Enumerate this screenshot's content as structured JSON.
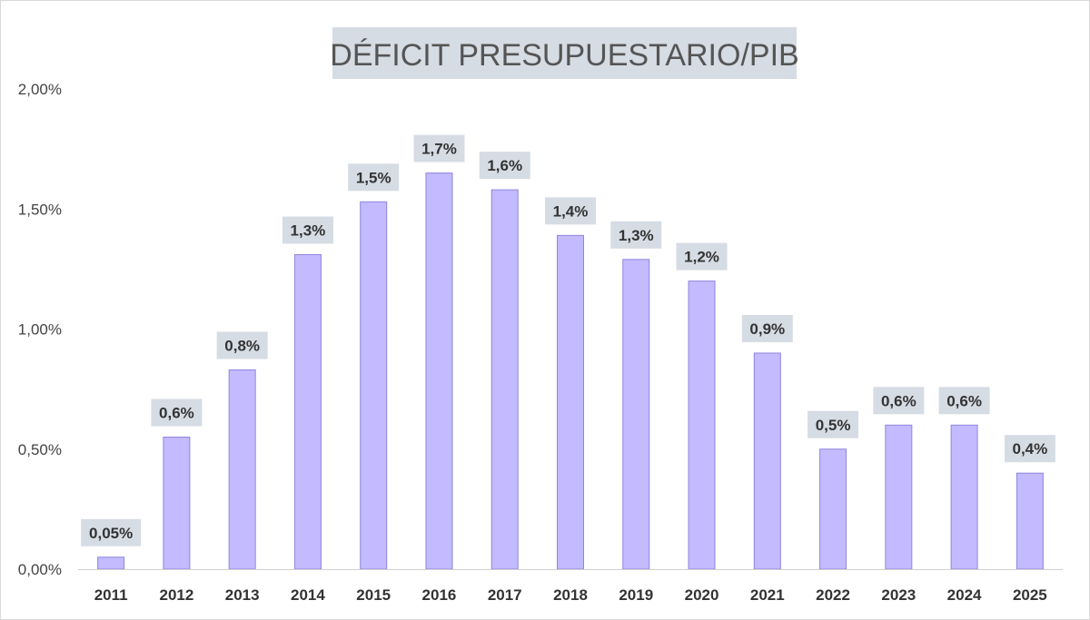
{
  "chart_data": {
    "type": "bar",
    "title": "DÉFICIT PRESUPUESTARIO/PIB",
    "xlabel": "",
    "ylabel": "",
    "ylim": [
      0,
      2.0
    ],
    "yticks": [
      0,
      0.5,
      1.0,
      1.5,
      2.0
    ],
    "ytick_labels": [
      "0,00%",
      "0,50%",
      "1,00%",
      "1,50%",
      "2,00%"
    ],
    "categories": [
      "2011",
      "2012",
      "2013",
      "2014",
      "2015",
      "2016",
      "2017",
      "2018",
      "2019",
      "2020",
      "2021",
      "2022",
      "2023",
      "2024",
      "2025"
    ],
    "values": [
      0.05,
      0.55,
      0.83,
      1.31,
      1.53,
      1.65,
      1.58,
      1.39,
      1.29,
      1.2,
      0.9,
      0.5,
      0.6,
      0.6,
      0.4
    ],
    "data_labels": [
      "0,05%",
      "0,6%",
      "0,8%",
      "1,3%",
      "1,5%",
      "1,7%",
      "1,6%",
      "1,4%",
      "1,3%",
      "1,2%",
      "0,9%",
      "0,5%",
      "0,6%",
      "0,6%",
      "0,4%"
    ],
    "grid": false,
    "legend": "none"
  },
  "colors": {
    "bar_fill": "#c3baff",
    "bar_stroke": "#8f86dd",
    "label_bg": "#d6dce4",
    "axis": "#d0d0d0"
  }
}
